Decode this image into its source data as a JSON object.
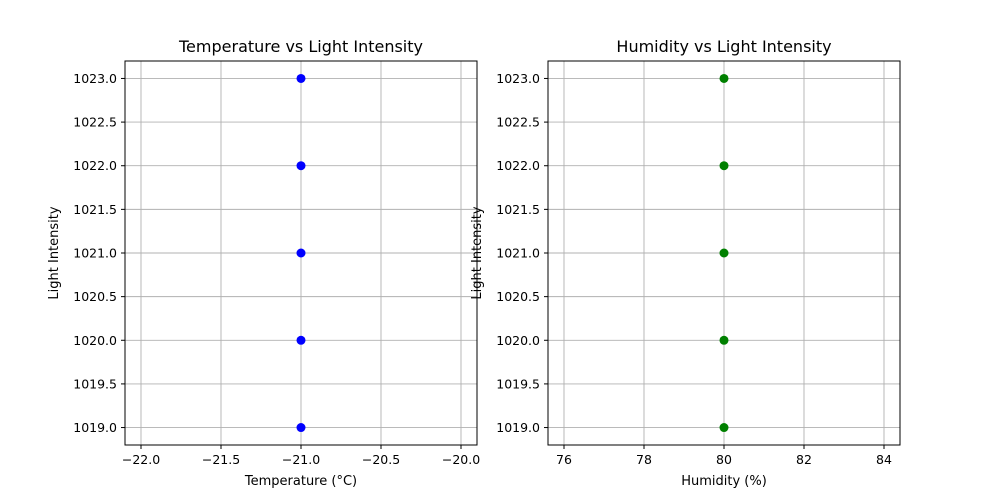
{
  "chart_data": [
    {
      "type": "scatter",
      "title": "Temperature vs Light Intensity",
      "xlabel": "Temperature (°C)",
      "ylabel": "Light Intensity",
      "xlim": [
        -22.1,
        -19.9
      ],
      "ylim": [
        1018.8,
        1023.2
      ],
      "xticks": [
        -22.0,
        -21.5,
        -21.0,
        -20.5,
        -20.0
      ],
      "xtick_labels": [
        "−22.0",
        "−21.5",
        "−21.0",
        "−20.5",
        "−20.0"
      ],
      "yticks": [
        1019.0,
        1019.5,
        1020.0,
        1020.5,
        1021.0,
        1021.5,
        1022.0,
        1022.5,
        1023.0
      ],
      "ytick_labels": [
        "1019.0",
        "1019.5",
        "1020.0",
        "1020.5",
        "1021.0",
        "1021.5",
        "1022.0",
        "1022.5",
        "1023.0"
      ],
      "grid": true,
      "color": "#0000ff",
      "series": [
        {
          "x": [
            -21,
            -21,
            -21,
            -21,
            -21
          ],
          "y": [
            1019,
            1020,
            1021,
            1022,
            1023
          ]
        }
      ]
    },
    {
      "type": "scatter",
      "title": "Humidity vs Light Intensity",
      "xlabel": "Humidity (%)",
      "ylabel": "Light Intensity",
      "xlim": [
        75.6,
        84.4
      ],
      "ylim": [
        1018.8,
        1023.2
      ],
      "xticks": [
        76,
        78,
        80,
        82,
        84
      ],
      "xtick_labels": [
        "76",
        "78",
        "80",
        "82",
        "84"
      ],
      "yticks": [
        1019.0,
        1019.5,
        1020.0,
        1020.5,
        1021.0,
        1021.5,
        1022.0,
        1022.5,
        1023.0
      ],
      "ytick_labels": [
        "1019.0",
        "1019.5",
        "1020.0",
        "1020.5",
        "1021.0",
        "1021.5",
        "1022.0",
        "1022.5",
        "1023.0"
      ],
      "grid": true,
      "color": "#008000",
      "series": [
        {
          "x": [
            80,
            80,
            80,
            80,
            80
          ],
          "y": [
            1019,
            1020,
            1021,
            1022,
            1023
          ]
        }
      ]
    }
  ]
}
